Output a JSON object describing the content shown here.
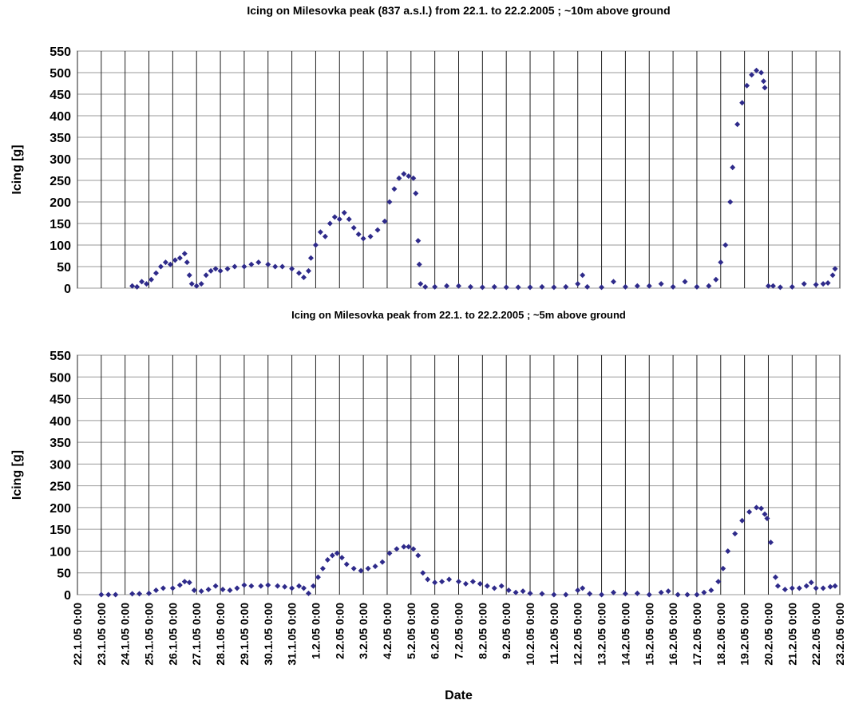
{
  "chart_data": [
    {
      "type": "scatter",
      "title": "Icing on Milesovka peak (837 a.s.l.) from 22.1. to 22.2.2005 ; ~10m above ground",
      "y_label": "Icing [g]",
      "xlim": [
        0,
        32
      ],
      "xticks": [
        0,
        1,
        2,
        3,
        4,
        5,
        6,
        7,
        8,
        9,
        10,
        11,
        12,
        13,
        14,
        15,
        16,
        17,
        18,
        19,
        20,
        21,
        22,
        23,
        24,
        25,
        26,
        27,
        28,
        29,
        30,
        31,
        32
      ],
      "show_xtick_labels": false,
      "ylim": [
        0,
        550
      ],
      "yticks": [
        0,
        50,
        100,
        150,
        200,
        250,
        300,
        350,
        400,
        450,
        500,
        550
      ],
      "grid": true,
      "series": [
        {
          "color": "#2e2a8a",
          "x": [
            2.3,
            2.5,
            2.7,
            2.9,
            3.1,
            3.3,
            3.5,
            3.7,
            3.9,
            4.1,
            4.3,
            4.5,
            4.6,
            4.7,
            4.8,
            5.0,
            5.2,
            5.4,
            5.6,
            5.8,
            6.0,
            6.3,
            6.6,
            7.0,
            7.3,
            7.6,
            8.0,
            8.3,
            8.6,
            9.0,
            9.3,
            9.5,
            9.7,
            9.8,
            10.0,
            10.2,
            10.4,
            10.6,
            10.8,
            11.0,
            11.2,
            11.4,
            11.6,
            11.8,
            12.0,
            12.3,
            12.6,
            12.9,
            13.1,
            13.3,
            13.5,
            13.7,
            13.9,
            14.1,
            14.2,
            14.3,
            14.35,
            14.4,
            14.6,
            15,
            15.5,
            16,
            16.5,
            17,
            17.5,
            18,
            18.5,
            19,
            19.5,
            20,
            20.5,
            21,
            21.2,
            21.4,
            22,
            22.5,
            23,
            23.5,
            24,
            24.5,
            25,
            25.5,
            26,
            26.5,
            26.8,
            27.0,
            27.2,
            27.4,
            27.5,
            27.7,
            27.9,
            28.1,
            28.3,
            28.5,
            28.7,
            28.8,
            28.85,
            29.0,
            29.2,
            29.5,
            30,
            30.5,
            31,
            31.3,
            31.5,
            31.7,
            31.8
          ],
          "values": [
            5,
            3,
            15,
            10,
            20,
            35,
            50,
            60,
            55,
            65,
            70,
            80,
            60,
            30,
            10,
            5,
            10,
            30,
            40,
            45,
            40,
            45,
            50,
            50,
            55,
            60,
            55,
            50,
            50,
            45,
            35,
            25,
            40,
            70,
            100,
            130,
            120,
            150,
            165,
            160,
            175,
            160,
            140,
            125,
            115,
            120,
            135,
            155,
            200,
            230,
            255,
            265,
            260,
            255,
            220,
            110,
            55,
            10,
            3,
            3,
            5,
            5,
            3,
            2,
            3,
            2,
            2,
            2,
            3,
            2,
            3,
            10,
            30,
            3,
            2,
            15,
            3,
            5,
            5,
            10,
            3,
            15,
            3,
            5,
            20,
            60,
            100,
            200,
            280,
            380,
            430,
            470,
            495,
            505,
            500,
            480,
            465,
            5,
            5,
            2,
            3,
            10,
            8,
            10,
            12,
            30,
            45
          ]
        }
      ]
    },
    {
      "type": "scatter",
      "title": "Icing on Milesovka peak from 22.1. to 22.2.2005 ; ~5m above ground",
      "y_label": "Icing [g]",
      "x_label": "Date",
      "xlim": [
        0,
        32
      ],
      "xticks": [
        {
          "value": 0,
          "label": "22.1.05 0:00"
        },
        {
          "value": 1,
          "label": "23.1.05 0:00"
        },
        {
          "value": 2,
          "label": "24.1.05 0:00"
        },
        {
          "value": 3,
          "label": "25.1.05 0:00"
        },
        {
          "value": 4,
          "label": "26.1.05 0:00"
        },
        {
          "value": 5,
          "label": "27.1.05 0:00"
        },
        {
          "value": 6,
          "label": "28.1.05 0:00"
        },
        {
          "value": 7,
          "label": "29.1.05 0:00"
        },
        {
          "value": 8,
          "label": "30.1.05 0:00"
        },
        {
          "value": 9,
          "label": "31.1.05 0:00"
        },
        {
          "value": 10,
          "label": "1.2.05 0:00"
        },
        {
          "value": 11,
          "label": "2.2.05 0:00"
        },
        {
          "value": 12,
          "label": "3.2.05 0:00"
        },
        {
          "value": 13,
          "label": "4.2.05 0:00"
        },
        {
          "value": 14,
          "label": "5.2.05 0:00"
        },
        {
          "value": 15,
          "label": "6.2.05 0:00"
        },
        {
          "value": 16,
          "label": "7.2.05 0:00"
        },
        {
          "value": 17,
          "label": "8.2.05 0:00"
        },
        {
          "value": 18,
          "label": "9.2.05 0:00"
        },
        {
          "value": 19,
          "label": "10.2.05 0:00"
        },
        {
          "value": 20,
          "label": "11.2.05 0:00"
        },
        {
          "value": 21,
          "label": "12.2.05 0:00"
        },
        {
          "value": 22,
          "label": "13.2.05 0:00"
        },
        {
          "value": 23,
          "label": "14.2.05 0:00"
        },
        {
          "value": 24,
          "label": "15.2.05 0:00"
        },
        {
          "value": 25,
          "label": "16.2.05 0:00"
        },
        {
          "value": 26,
          "label": "17.2.05 0:00"
        },
        {
          "value": 27,
          "label": "18.2.05 0:00"
        },
        {
          "value": 28,
          "label": "19.2.05 0:00"
        },
        {
          "value": 29,
          "label": "20.2.05 0:00"
        },
        {
          "value": 30,
          "label": "21.2.05 0:00"
        },
        {
          "value": 31,
          "label": "22.2.05 0:00"
        },
        {
          "value": 32,
          "label": "23.2.05 0:00"
        }
      ],
      "show_xtick_labels": true,
      "ylim": [
        0,
        550
      ],
      "yticks": [
        0,
        50,
        100,
        150,
        200,
        250,
        300,
        350,
        400,
        450,
        500,
        550
      ],
      "grid": true,
      "series": [
        {
          "color": "#2e2a8a",
          "x": [
            1,
            1.3,
            1.6,
            2.3,
            2.6,
            3.0,
            3.3,
            3.6,
            4.0,
            4.3,
            4.5,
            4.7,
            4.9,
            5.2,
            5.5,
            5.8,
            6.1,
            6.4,
            6.7,
            7.0,
            7.3,
            7.7,
            8.0,
            8.4,
            8.7,
            9.0,
            9.3,
            9.5,
            9.7,
            9.9,
            10.1,
            10.3,
            10.5,
            10.7,
            10.9,
            11.1,
            11.3,
            11.6,
            11.9,
            12.2,
            12.5,
            12.8,
            13.1,
            13.4,
            13.7,
            13.9,
            14.1,
            14.3,
            14.5,
            14.7,
            15.0,
            15.3,
            15.6,
            16.0,
            16.3,
            16.6,
            16.9,
            17.2,
            17.5,
            17.8,
            18.1,
            18.4,
            18.7,
            19.0,
            19.5,
            20,
            20.5,
            21,
            21.2,
            21.5,
            22,
            22.5,
            23,
            23.5,
            24,
            24.5,
            24.8,
            25.2,
            25.6,
            26,
            26.3,
            26.6,
            26.9,
            27.1,
            27.3,
            27.6,
            27.9,
            28.2,
            28.5,
            28.7,
            28.85,
            28.95,
            29.1,
            29.3,
            29.4,
            29.7,
            30,
            30.3,
            30.6,
            30.8,
            31.0,
            31.3,
            31.6,
            31.8
          ],
          "values": [
            0,
            0,
            0,
            2,
            2,
            3,
            10,
            15,
            15,
            22,
            30,
            28,
            10,
            8,
            12,
            20,
            12,
            10,
            15,
            22,
            20,
            20,
            22,
            20,
            18,
            15,
            20,
            15,
            3,
            20,
            40,
            60,
            80,
            90,
            95,
            85,
            70,
            60,
            55,
            60,
            65,
            75,
            95,
            105,
            110,
            110,
            105,
            90,
            50,
            35,
            28,
            30,
            35,
            30,
            25,
            30,
            25,
            20,
            15,
            20,
            10,
            5,
            8,
            3,
            2,
            0,
            0,
            10,
            15,
            2,
            0,
            5,
            2,
            3,
            0,
            5,
            8,
            0,
            0,
            0,
            5,
            10,
            30,
            60,
            100,
            140,
            170,
            190,
            200,
            198,
            185,
            175,
            120,
            40,
            20,
            12,
            15,
            15,
            20,
            28,
            15,
            15,
            18,
            20
          ]
        }
      ]
    }
  ]
}
